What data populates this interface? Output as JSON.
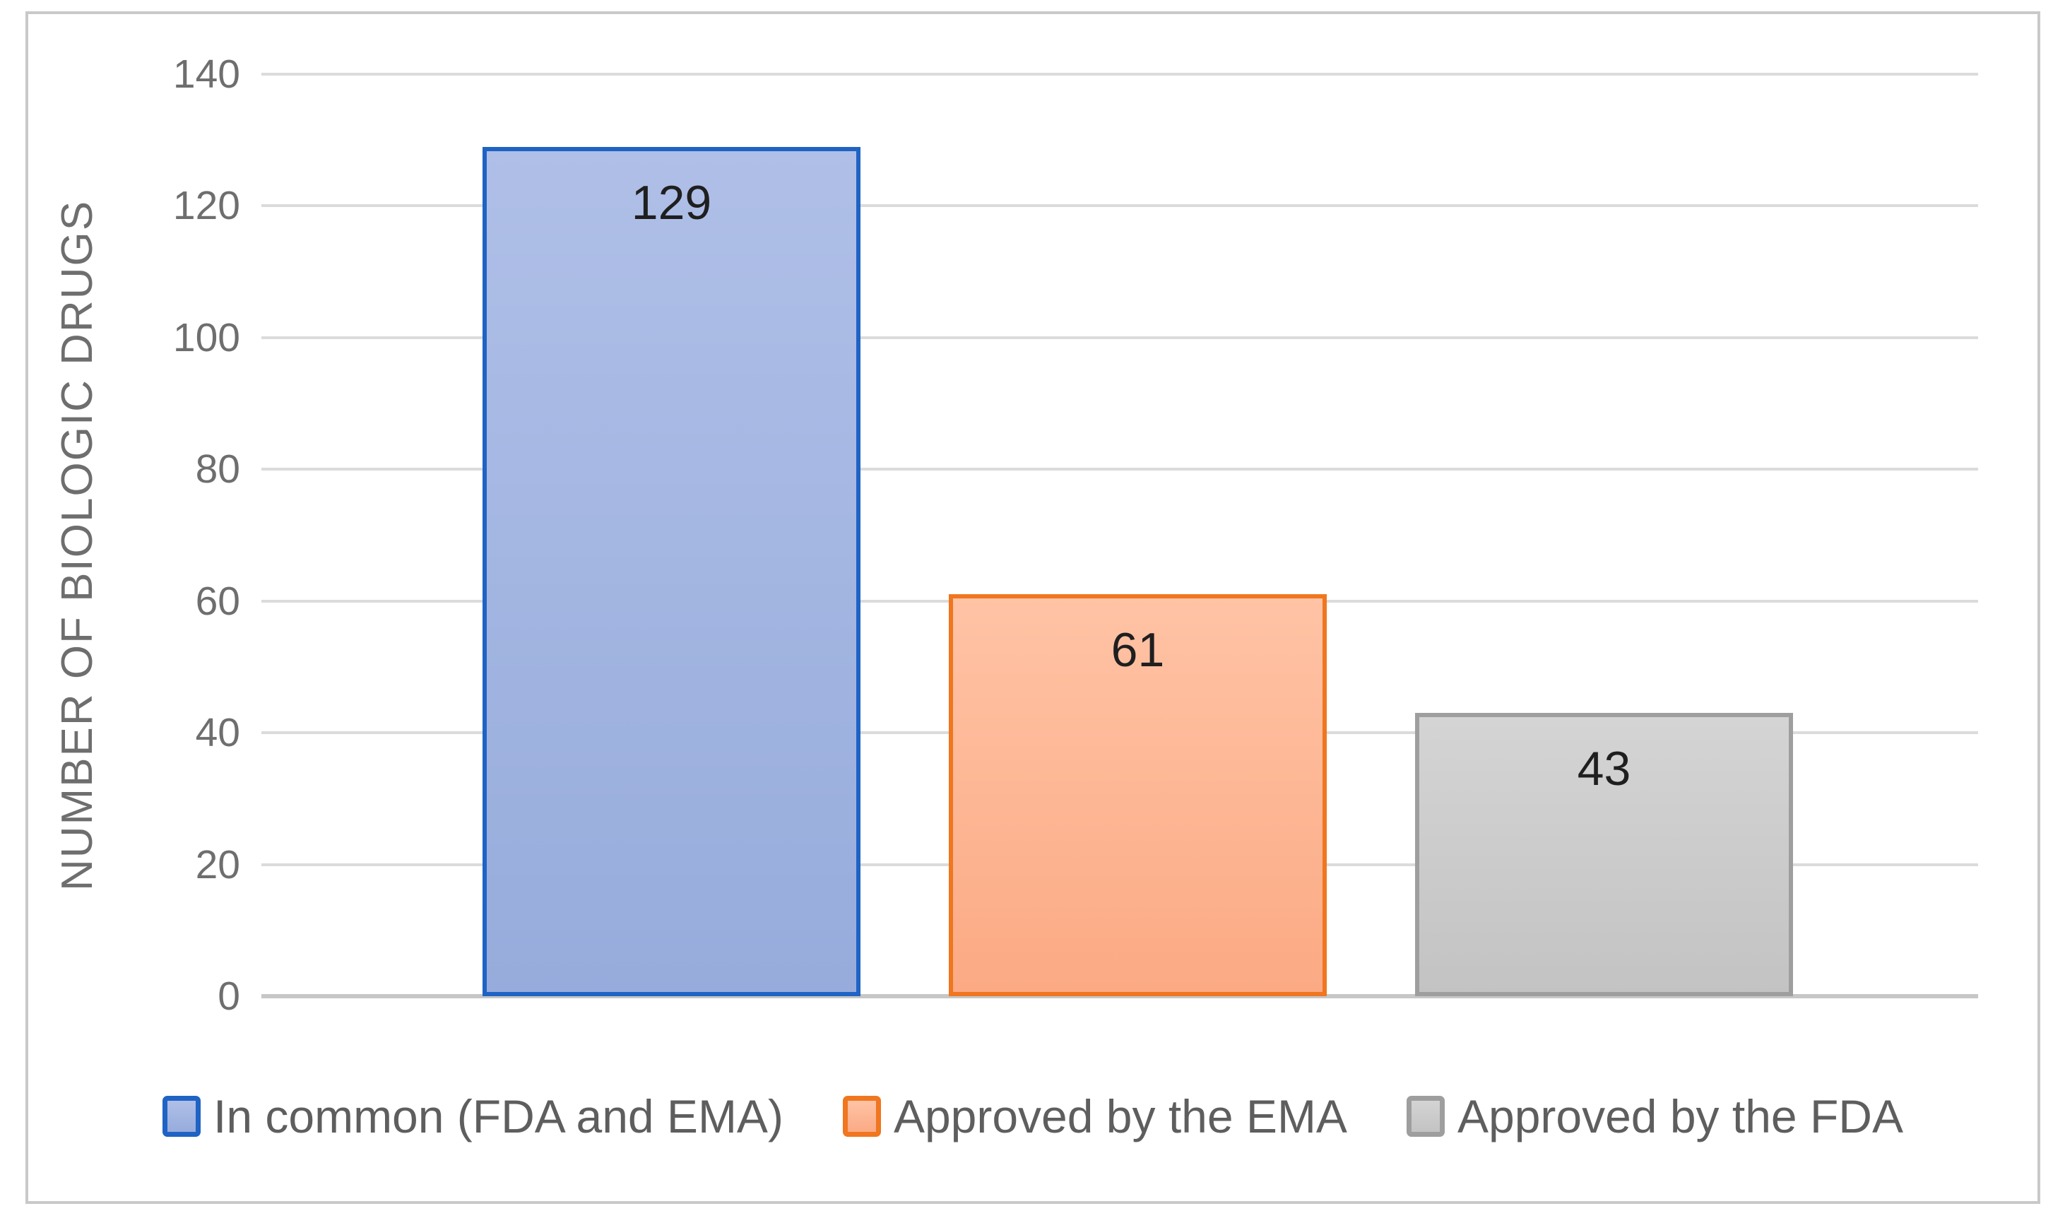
{
  "chart_data": {
    "type": "bar",
    "title": "",
    "ylabel": "NUMBER OF BIOLOGIC DRUGS",
    "xlabel": "",
    "ylim": [
      0,
      140
    ],
    "ytick_step": 20,
    "yticks": [
      0,
      20,
      40,
      60,
      80,
      100,
      120,
      140
    ],
    "grid": true,
    "legend_position": "bottom",
    "categories": [
      "In common (FDA and EMA)",
      "Approved by the EMA",
      "Approved by the FDA"
    ],
    "values": [
      129,
      61,
      43
    ],
    "data_labels": [
      "129",
      "61",
      "43"
    ],
    "series_colors": [
      {
        "fill_top": "#AFBFE7",
        "fill_bottom": "#97ACDC",
        "border": "#1F63C4"
      },
      {
        "fill_top": "#FFC3A5",
        "fill_bottom": "#FBAA84",
        "border": "#F0761F"
      },
      {
        "fill_top": "#D4D4D4",
        "fill_bottom": "#C3C3C3",
        "border": "#9E9E9E"
      }
    ],
    "gridline_color": "#DBDBDB",
    "axis_line_color": "#C7C7C7",
    "axis_text_color": "#6E6E6E",
    "data_label_color": "#1F1F1F",
    "legend_text_color": "#5E5E5E",
    "figure_border_color": "#C9C9C9"
  }
}
